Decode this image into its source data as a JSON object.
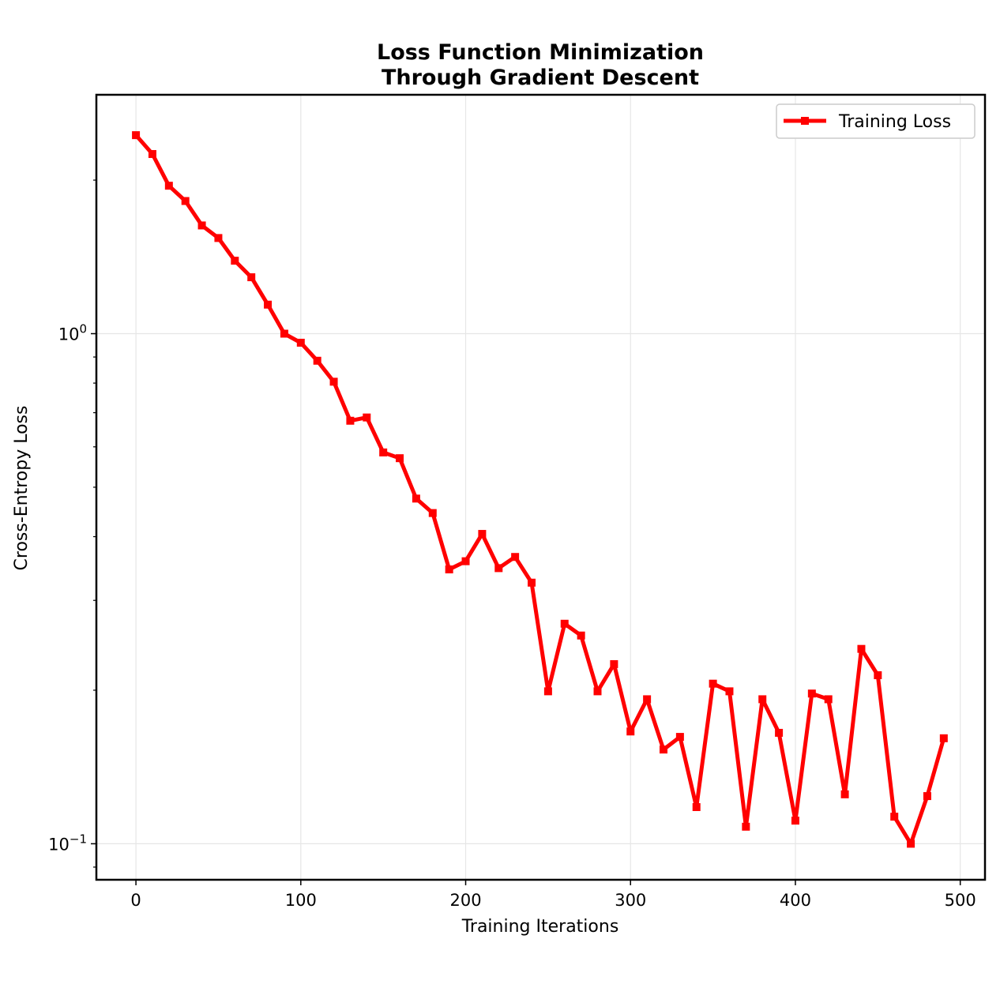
{
  "chart_data": {
    "type": "line",
    "title_lines": [
      "Loss Function Minimization",
      "Through Gradient Descent"
    ],
    "xlabel": "Training Iterations",
    "ylabel": "Cross-Entropy Loss",
    "yscale": "log",
    "xlim": [
      -24,
      515
    ],
    "ylim": [
      0.085,
      2.94
    ],
    "x_ticks": [
      0,
      100,
      200,
      300,
      400,
      500
    ],
    "y_ticks": [
      {
        "value": 1.0,
        "base": "10",
        "exp": "0"
      },
      {
        "value": 0.1,
        "base": "10",
        "exp": "−1"
      }
    ],
    "grid": true,
    "legend_position": "top-right",
    "series": [
      {
        "name": "Training Loss",
        "color": "#ff0000",
        "marker": "square",
        "x": [
          0,
          10,
          20,
          30,
          40,
          50,
          60,
          70,
          80,
          90,
          100,
          110,
          120,
          130,
          140,
          150,
          160,
          170,
          180,
          190,
          200,
          210,
          220,
          230,
          240,
          250,
          260,
          270,
          280,
          290,
          300,
          310,
          320,
          330,
          340,
          350,
          360,
          370,
          380,
          390,
          400,
          410,
          420,
          430,
          440,
          450,
          460,
          470,
          480,
          490
        ],
        "values": [
          2.45,
          2.25,
          1.95,
          1.82,
          1.63,
          1.54,
          1.39,
          1.29,
          1.14,
          1.0,
          0.96,
          0.885,
          0.805,
          0.675,
          0.685,
          0.585,
          0.57,
          0.475,
          0.445,
          0.345,
          0.358,
          0.405,
          0.347,
          0.365,
          0.325,
          0.199,
          0.27,
          0.256,
          0.199,
          0.225,
          0.166,
          0.192,
          0.153,
          0.162,
          0.118,
          0.206,
          0.199,
          0.108,
          0.192,
          0.165,
          0.111,
          0.197,
          0.192,
          0.125,
          0.241,
          0.214,
          0.113,
          0.1,
          0.124,
          0.161
        ]
      }
    ]
  }
}
